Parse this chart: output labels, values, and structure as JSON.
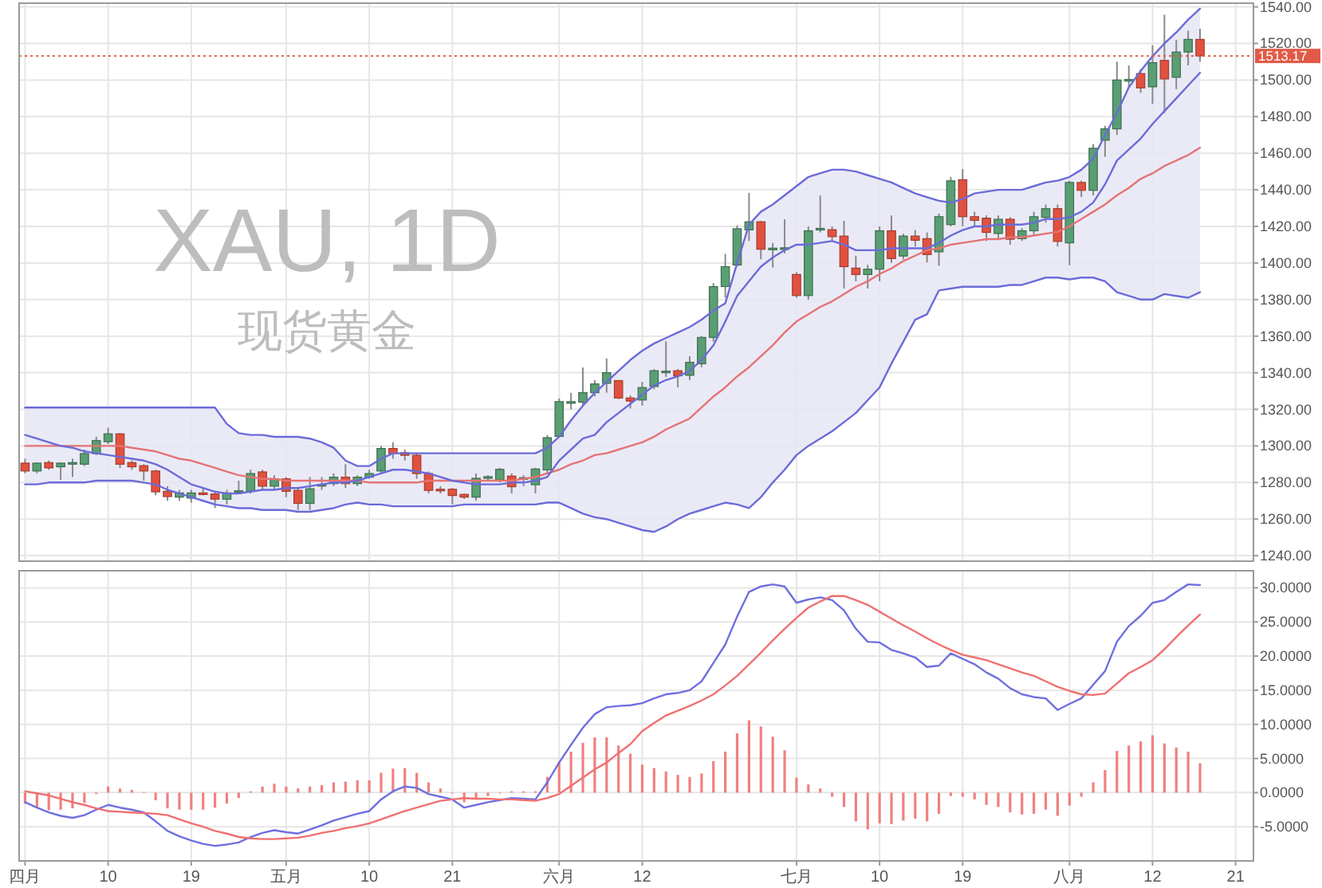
{
  "chart_data": [
    {
      "type": "candlestick",
      "title": "XAU, 1D",
      "subtitle": "现货黄金",
      "grid": true,
      "categories": [
        null,
        null,
        null,
        null,
        null,
        null,
        null,
        null,
        null,
        null,
        null,
        null,
        null,
        null,
        null,
        null,
        null,
        null,
        null,
        null,
        null,
        null,
        null,
        null,
        null,
        null,
        null,
        null,
        null,
        null,
        null,
        null,
        null,
        null,
        null,
        null,
        null,
        null,
        null,
        null,
        null,
        null,
        null,
        null,
        null,
        null,
        null,
        null,
        null,
        null,
        null,
        null,
        null,
        null,
        null,
        null,
        null,
        null,
        null,
        null,
        null,
        null,
        null,
        null,
        null,
        null,
        null,
        null,
        null,
        null,
        null,
        null,
        null,
        null,
        null,
        null,
        null,
        null,
        null,
        null,
        null,
        null,
        null,
        null,
        null,
        null,
        null,
        null,
        null,
        null,
        null,
        null,
        null,
        null,
        null,
        null,
        null,
        null,
        null,
        null,
        null,
        null,
        null,
        null
      ],
      "ylim": [
        1237,
        1542
      ],
      "yticks": [
        {
          "value": 1240,
          "label": "1240.00"
        },
        {
          "value": 1260,
          "label": "1260.00"
        },
        {
          "value": 1280,
          "label": "1280.00"
        },
        {
          "value": 1300,
          "label": "1300.00"
        },
        {
          "value": 1320,
          "label": "1320.00"
        },
        {
          "value": 1340,
          "label": "1340.00"
        },
        {
          "value": 1360,
          "label": "1360.00"
        },
        {
          "value": 1380,
          "label": "1380.00"
        },
        {
          "value": 1400,
          "label": "1400.00"
        },
        {
          "value": 1420,
          "label": "1420.00"
        },
        {
          "value": 1440,
          "label": "1440.00"
        },
        {
          "value": 1460,
          "label": "1460.00"
        },
        {
          "value": 1480,
          "label": "1480.00"
        },
        {
          "value": 1500,
          "label": "1500.00"
        },
        {
          "value": 1520,
          "label": "1520.00"
        },
        {
          "value": 1540,
          "label": "1540.00"
        }
      ],
      "ref_lines": [
        {
          "axis": "y",
          "value": 1513.17,
          "label": "1513.17",
          "color": "#e05a47",
          "line_style": "dotted"
        }
      ],
      "ohlc": [
        [
          1290.6,
          1293,
          1285,
          1286.3
        ],
        [
          1286.3,
          1291,
          1285,
          1290.6
        ],
        [
          1290.9,
          1292,
          1287,
          1288
        ],
        [
          1288.6,
          1291,
          1281.5,
          1290.6
        ],
        [
          1290.6,
          1293,
          1283,
          1290.9
        ],
        [
          1290,
          1298,
          1289,
          1295.8
        ],
        [
          1295.8,
          1305,
          1295,
          1302.9
        ],
        [
          1302.3,
          1310,
          1301,
          1306.6
        ],
        [
          1306.6,
          1307,
          1288,
          1290
        ],
        [
          1290.9,
          1292,
          1287,
          1288.6
        ],
        [
          1289.2,
          1290,
          1281,
          1286.3
        ],
        [
          1286.3,
          1287,
          1273,
          1274.9
        ],
        [
          1275.2,
          1278,
          1270,
          1272.3
        ],
        [
          1272,
          1276,
          1270,
          1274.3
        ],
        [
          1271.5,
          1276,
          1269,
          1274.3
        ],
        [
          1274.3,
          1277,
          1273,
          1274
        ],
        [
          1273.7,
          1275,
          1266,
          1270.9
        ],
        [
          1270.9,
          1276,
          1268,
          1274.3
        ],
        [
          1275.2,
          1281,
          1274,
          1275.5
        ],
        [
          1275.2,
          1287,
          1274,
          1284.9
        ],
        [
          1285.8,
          1287,
          1276,
          1278
        ],
        [
          1278,
          1284,
          1276,
          1282
        ],
        [
          1282,
          1283,
          1272,
          1275.2
        ],
        [
          1275.7,
          1277,
          1265,
          1268.6
        ],
        [
          1268.6,
          1283,
          1265,
          1276.6
        ],
        [
          1278.6,
          1283,
          1276,
          1278.9
        ],
        [
          1279.4,
          1285,
          1278,
          1282.9
        ],
        [
          1282.9,
          1290,
          1277,
          1279.4
        ],
        [
          1279.4,
          1284,
          1278,
          1282.9
        ],
        [
          1282.9,
          1287,
          1282,
          1284.9
        ],
        [
          1286.3,
          1300,
          1285,
          1298.6
        ],
        [
          1298.6,
          1302,
          1293,
          1295.8
        ],
        [
          1296.3,
          1298,
          1292,
          1294.9
        ],
        [
          1294.9,
          1296,
          1282,
          1284.9
        ],
        [
          1284.9,
          1286,
          1274,
          1275.7
        ],
        [
          1276.3,
          1278,
          1274,
          1276
        ],
        [
          1276.3,
          1277,
          1268,
          1272.9
        ],
        [
          1273.5,
          1274,
          1271,
          1272
        ],
        [
          1272,
          1285,
          1270,
          1282.3
        ],
        [
          1282.9,
          1284,
          1281,
          1283.2
        ],
        [
          1281.5,
          1288,
          1280,
          1287.2
        ],
        [
          1283.5,
          1285,
          1274,
          1277.7
        ],
        [
          1282.3,
          1284,
          1278,
          1282.6
        ],
        [
          1278.8,
          1288,
          1274,
          1287.4
        ],
        [
          1286.9,
          1306,
          1285,
          1304.5
        ],
        [
          1305.2,
          1326,
          1305,
          1324.2
        ],
        [
          1323.9,
          1329,
          1320,
          1324.2
        ],
        [
          1323.9,
          1342.9,
          1321.9,
          1329.1
        ],
        [
          1329.1,
          1336,
          1327,
          1333.9
        ],
        [
          1334.2,
          1347.8,
          1329.1,
          1340
        ],
        [
          1335.7,
          1336,
          1325.6,
          1326.2
        ],
        [
          1326.2,
          1327.6,
          1320.5,
          1324.5
        ],
        [
          1325.1,
          1335,
          1322,
          1331.9
        ],
        [
          1332.5,
          1342,
          1331,
          1341.1
        ],
        [
          1340.6,
          1357.2,
          1337.7,
          1340.9
        ],
        [
          1341.1,
          1342,
          1332,
          1338.3
        ],
        [
          1338.6,
          1349,
          1336,
          1345.7
        ],
        [
          1344.9,
          1360,
          1343,
          1359.3
        ],
        [
          1359.3,
          1389,
          1357,
          1387.1
        ],
        [
          1387.1,
          1405,
          1381,
          1398
        ],
        [
          1398.9,
          1420.5,
          1398,
          1418.7
        ],
        [
          1418.1,
          1438.3,
          1412,
          1422.5
        ],
        [
          1422.5,
          1423,
          1402,
          1407.5
        ],
        [
          1408,
          1411,
          1397.5,
          1408.1
        ],
        [
          1408.1,
          1423.9,
          1405.2,
          1408.3
        ],
        [
          1393.7,
          1395,
          1381,
          1382.2
        ],
        [
          1382.2,
          1420,
          1380,
          1417.6
        ],
        [
          1418.7,
          1436.9,
          1416.7,
          1418.9
        ],
        [
          1418.2,
          1420,
          1412,
          1414.4
        ],
        [
          1414.7,
          1423,
          1386,
          1398
        ],
        [
          1397.2,
          1404,
          1390,
          1393.7
        ],
        [
          1393.7,
          1399,
          1386,
          1396.6
        ],
        [
          1396.6,
          1420,
          1390,
          1417.6
        ],
        [
          1417.6,
          1426,
          1400,
          1402.4
        ],
        [
          1403.8,
          1416,
          1402,
          1414.7
        ],
        [
          1414.7,
          1418,
          1409,
          1412.4
        ],
        [
          1413.3,
          1416.7,
          1400.3,
          1404.6
        ],
        [
          1406.1,
          1427,
          1398.5,
          1425.3
        ],
        [
          1421,
          1447,
          1420,
          1444.9
        ],
        [
          1445.5,
          1451.3,
          1420,
          1425.3
        ],
        [
          1425.3,
          1428,
          1420,
          1423.3
        ],
        [
          1424.5,
          1426,
          1412,
          1416.7
        ],
        [
          1416.1,
          1426,
          1413,
          1423.9
        ],
        [
          1423.9,
          1425,
          1410,
          1413
        ],
        [
          1413.3,
          1419,
          1412,
          1417.6
        ],
        [
          1417.6,
          1428,
          1415,
          1425.3
        ],
        [
          1424.9,
          1432,
          1422,
          1429.7
        ],
        [
          1429.7,
          1432,
          1409,
          1411.8
        ],
        [
          1411,
          1445,
          1398.7,
          1444
        ],
        [
          1444,
          1445,
          1436,
          1439.7
        ],
        [
          1439.7,
          1465,
          1437,
          1462.7
        ],
        [
          1467.1,
          1475,
          1458,
          1473.3
        ],
        [
          1473.3,
          1510,
          1470,
          1500
        ],
        [
          1500,
          1508,
          1496,
          1500.3
        ],
        [
          1503.5,
          1506,
          1493,
          1495.7
        ],
        [
          1496.3,
          1519,
          1487,
          1509.5
        ],
        [
          1510.7,
          1535.7,
          1482,
          1500.6
        ],
        [
          1501.5,
          1522,
          1495,
          1515.3
        ],
        [
          1515.3,
          1527,
          1508,
          1522.2
        ],
        [
          1522.2,
          1528,
          1510,
          1513.2
        ],
        null,
        null,
        null,
        null
      ],
      "series": [
        {
          "type": "line",
          "color": "#6b6bd9",
          "values": [
            1321,
            1321,
            1321,
            1321,
            1321,
            1321,
            1321,
            1321,
            1321,
            1321,
            1321,
            1321,
            1321,
            1321,
            1321,
            1321,
            1321,
            1312,
            1307,
            1306,
            1306,
            1305,
            1305,
            1305,
            1304,
            1302,
            1299,
            1292,
            1289,
            1289,
            1293,
            1296,
            1296,
            1296,
            1296,
            1296,
            1296,
            1296,
            1296,
            1296,
            1296,
            1296,
            1296,
            1296,
            1299,
            1305,
            1314,
            1322,
            1329,
            1335,
            1341,
            1347,
            1352,
            1356,
            1359,
            1362,
            1365,
            1369,
            1374,
            1378,
            1400,
            1421,
            1428,
            1432,
            1437,
            1442,
            1447,
            1449,
            1451,
            1451,
            1450,
            1448,
            1446,
            1444,
            1441,
            1438,
            1436,
            1434,
            1433,
            1435,
            1438,
            1439,
            1440,
            1440,
            1440,
            1442,
            1444,
            1445,
            1447,
            1451,
            1457,
            1470,
            1482,
            1496,
            1505,
            1513,
            1520,
            1526,
            1533,
            1539,
            null,
            null,
            null,
            null
          ]
        },
        {
          "type": "line",
          "color": "#6b6bd9",
          "values": [
            1279,
            1279,
            1280,
            1280,
            1280,
            1280,
            1281,
            1281,
            1281,
            1281,
            1280,
            1279,
            1276,
            1274,
            1272,
            1270,
            1268,
            1267,
            1266,
            1266,
            1265,
            1265,
            1265,
            1264,
            1264,
            1265,
            1266,
            1268,
            1269,
            1268,
            1268,
            1267,
            1267,
            1267,
            1267,
            1267,
            1267,
            1268,
            1268,
            1268,
            1268,
            1268,
            1268,
            1268,
            1269,
            1269,
            1266,
            1263,
            1261,
            1260,
            1258,
            1256,
            1254,
            1253,
            1256,
            1260,
            1263,
            1265,
            1267,
            1269,
            1268,
            1266,
            1272,
            1280,
            1287,
            1295,
            1300,
            1304,
            1308,
            1313,
            1318,
            1325,
            1332,
            1345,
            1357,
            1369,
            1372,
            1385,
            1386,
            1387,
            1387,
            1387,
            1387,
            1388,
            1388,
            1390,
            1392,
            1392,
            1391,
            1392,
            1392,
            1390,
            1384,
            1382,
            1380,
            1380,
            1383,
            1382,
            1381,
            1384,
            null,
            null,
            null,
            null
          ]
        },
        {
          "type": "line",
          "color": "#e57373",
          "lower": [
            1279,
            1279,
            1280,
            1280,
            1280,
            1280,
            1281,
            1281,
            1281,
            1281,
            1280,
            1279,
            1276,
            1274,
            1272,
            1270,
            1268,
            1267,
            1266,
            1266,
            1265,
            1265,
            1265,
            1264,
            1264,
            1265,
            1266,
            1268,
            1269,
            1268,
            1268,
            1267,
            1267,
            1267,
            1267,
            1267,
            1267,
            1268,
            1268,
            1268,
            1268,
            1268,
            1268,
            1268,
            1269,
            1269,
            1266,
            1263,
            1261,
            1260,
            1258,
            1256,
            1254,
            1253,
            1256,
            1260,
            1263,
            1265,
            1267,
            1269,
            1268,
            1266,
            1272,
            1280,
            1287,
            1295,
            1300,
            1304,
            1308,
            1313,
            1318,
            1325,
            1332,
            1345,
            1357,
            1369,
            1372,
            1385,
            1386,
            1387,
            1387,
            1387,
            1387,
            1388,
            1388,
            1390,
            1392,
            1392,
            1391,
            1392,
            1392,
            1390,
            1384,
            1382,
            1380,
            1380,
            1383,
            1382,
            1381,
            1384,
            null,
            null,
            null,
            null
          ],
          "upper": [
            1321,
            1321,
            1321,
            1321,
            1321,
            1321,
            1321,
            1321,
            1321,
            1321,
            1321,
            1321,
            1321,
            1321,
            1321,
            1321,
            1321,
            1312,
            1307,
            1306,
            1306,
            1305,
            1305,
            1305,
            1304,
            1302,
            1299,
            1292,
            1289,
            1289,
            1293,
            1296,
            1296,
            1296,
            1296,
            1296,
            1296,
            1296,
            1296,
            1296,
            1296,
            1296,
            1296,
            1296,
            1299,
            1305,
            1314,
            1322,
            1329,
            1335,
            1341,
            1347,
            1352,
            1356,
            1359,
            1362,
            1365,
            1369,
            1374,
            1378,
            1400,
            1421,
            1428,
            1432,
            1437,
            1442,
            1447,
            1449,
            1451,
            1451,
            1450,
            1448,
            1446,
            1444,
            1441,
            1438,
            1436,
            1434,
            1433,
            1435,
            1438,
            1439,
            1440,
            1440,
            1440,
            1442,
            1444,
            1445,
            1447,
            1451,
            1457,
            1470,
            1482,
            1496,
            1505,
            1513,
            1520,
            1526,
            1533,
            1539,
            null,
            null,
            null,
            null
          ],
          "values": [
            1300,
            1300,
            1300,
            1300,
            1300,
            1300,
            1300,
            1300,
            1300,
            1299,
            1298,
            1297,
            1295,
            1293,
            1292,
            1290,
            1288,
            1286,
            1284,
            1283,
            1282,
            1282,
            1281,
            1281,
            1281,
            1281,
            1281,
            1281,
            1281,
            1280,
            1280,
            1280,
            1280,
            1280,
            1281,
            1281,
            1281,
            1281,
            1281,
            1281,
            1281,
            1281,
            1282,
            1283,
            1285,
            1287,
            1290,
            1292,
            1295,
            1296,
            1298,
            1300,
            1302,
            1305,
            1309,
            1312,
            1315,
            1321,
            1327,
            1332,
            1338,
            1343,
            1349,
            1355,
            1362,
            1368,
            1372,
            1376,
            1379,
            1383,
            1387,
            1390,
            1394,
            1397,
            1401,
            1404,
            1407,
            1408,
            1410,
            1411,
            1412,
            1413,
            1413,
            1414,
            1414,
            1415,
            1416,
            1417,
            1420,
            1424,
            1428,
            1432,
            1437,
            1441,
            1446,
            1449,
            1453,
            1456,
            1459,
            1463,
            null,
            null,
            null,
            null
          ]
        },
        {
          "type": "line",
          "color": "#6b6bd9",
          "values": [
            1306,
            1304,
            1302,
            1300,
            1299,
            1297,
            1296,
            1295,
            1294,
            1293,
            1292,
            1290,
            1287,
            1283,
            1279,
            1277,
            1275,
            1274,
            1274,
            1275,
            1276,
            1276,
            1277,
            1277,
            1278,
            1279,
            1280,
            1280,
            1281,
            1283,
            1285,
            1287,
            1287,
            1286,
            1285,
            1283,
            1281,
            1280,
            1279,
            1279,
            1279,
            1280,
            1280,
            1281,
            1283,
            1292,
            1298,
            1304,
            1306,
            1313,
            1318,
            1323,
            1328,
            1333,
            1336,
            1338,
            1341,
            1347,
            1355,
            1368,
            1382,
            1390,
            1398,
            1403,
            1407,
            1410,
            1410,
            1411,
            1412,
            1410,
            1407,
            1407,
            1407,
            1408,
            1408,
            1408,
            1408,
            1411,
            1415,
            1418,
            1420,
            1420,
            1421,
            1421,
            1421,
            1422,
            1424,
            1424,
            1425,
            1428,
            1433,
            1443,
            1456,
            1462,
            1468,
            1476,
            1483,
            1490,
            1497,
            1504,
            null,
            null,
            null,
            null
          ]
        }
      ]
    },
    {
      "type": "bar",
      "grid": true,
      "categories": [
        "四月",
        null,
        null,
        null,
        null,
        null,
        null,
        "10",
        null,
        null,
        null,
        null,
        null,
        null,
        "19",
        null,
        null,
        null,
        null,
        null,
        null,
        null,
        "五月",
        null,
        null,
        null,
        null,
        null,
        null,
        "10",
        null,
        null,
        null,
        null,
        null,
        null,
        "21",
        null,
        null,
        null,
        null,
        null,
        null,
        null,
        null,
        "六月",
        null,
        null,
        null,
        null,
        null,
        null,
        "12",
        null,
        null,
        null,
        null,
        null,
        null,
        null,
        null,
        null,
        null,
        null,
        null,
        "七月",
        null,
        null,
        null,
        null,
        null,
        null,
        "10",
        null,
        null,
        null,
        null,
        null,
        null,
        "19",
        null,
        null,
        null,
        null,
        null,
        null,
        null,
        null,
        "八月",
        null,
        null,
        null,
        null,
        null,
        null,
        "12",
        null,
        null,
        null,
        null,
        null,
        null,
        "21",
        null
      ],
      "ylim": [
        -10,
        32.5
      ],
      "yticks": [
        {
          "value": -5,
          "label": "-5.0000"
        },
        {
          "value": 0,
          "label": "0.0000"
        },
        {
          "value": 5,
          "label": "5.0000"
        },
        {
          "value": 10,
          "label": "10.0000"
        },
        {
          "value": 15,
          "label": "15.0000"
        },
        {
          "value": 20,
          "label": "20.0000"
        },
        {
          "value": 25,
          "label": "25.0000"
        },
        {
          "value": 30,
          "label": "30.0000"
        }
      ],
      "series": [
        {
          "type": "bar",
          "color": "#f08080",
          "values": [
            -1.6,
            -2.3,
            -2.6,
            -2.5,
            -2.3,
            -1.5,
            -0.2,
            0.9,
            0.6,
            0.4,
            0.1,
            -1.1,
            -2.3,
            -2.5,
            -2.5,
            -2.5,
            -2.2,
            -1.6,
            -0.8,
            0.2,
            0.9,
            1.3,
            0.9,
            0.6,
            0.9,
            1.1,
            1.5,
            1.6,
            1.8,
            1.8,
            2.9,
            3.5,
            3.6,
            2.9,
            1.5,
            0.6,
            0,
            -1.4,
            -0.9,
            -0.5,
            -0.1,
            0.2,
            0.2,
            0.2,
            2.3,
            4.6,
            6,
            7.3,
            8.1,
            8.1,
            6.9,
            5.7,
            4.1,
            3.6,
            3.1,
            2.6,
            2.3,
            2.8,
            4.6,
            6,
            8.7,
            10.6,
            9.7,
            8.2,
            6.2,
            2.2,
            1.2,
            0.6,
            -0.6,
            -2.1,
            -4.2,
            -5.4,
            -4.5,
            -4.6,
            -4.1,
            -3.8,
            -4.2,
            -3.1,
            -0.5,
            -0.6,
            -1,
            -1.8,
            -2.1,
            -2.9,
            -3.2,
            -3.1,
            -2.5,
            -3.4,
            -1.9,
            -0.6,
            1.5,
            3.3,
            6.1,
            6.9,
            7.5,
            8.4,
            7.2,
            6.6,
            6,
            4.3,
            null,
            null,
            null,
            null
          ]
        },
        {
          "type": "line",
          "color": "#6f6fe0",
          "values": [
            -1.4,
            -2.2,
            -2.9,
            -3.4,
            -3.7,
            -3.3,
            -2.5,
            -1.8,
            -2.2,
            -2.5,
            -2.9,
            -4.2,
            -5.6,
            -6.4,
            -7,
            -7.5,
            -7.8,
            -7.6,
            -7.3,
            -6.5,
            -5.9,
            -5.5,
            -5.8,
            -6,
            -5.4,
            -4.8,
            -4.1,
            -3.6,
            -3.1,
            -2.7,
            -1,
            0.2,
            0.9,
            0.7,
            -0.2,
            -0.6,
            -1,
            -2.2,
            -1.8,
            -1.4,
            -1.1,
            -0.8,
            -0.9,
            -1,
            1.5,
            4.4,
            7,
            9.5,
            11.5,
            12.5,
            12.7,
            12.8,
            13.1,
            13.8,
            14.4,
            14.6,
            15,
            16.3,
            19,
            21.7,
            25.8,
            29.4,
            30.2,
            30.5,
            30.2,
            27.8,
            28.3,
            28.6,
            28.2,
            26.7,
            24,
            22.1,
            22,
            20.9,
            20.4,
            19.8,
            18.4,
            18.6,
            20.4,
            19.6,
            18.8,
            17.6,
            16.7,
            15.3,
            14.4,
            14,
            13.8,
            12.1,
            13,
            13.8,
            15.8,
            17.8,
            22.1,
            24.4,
            25.9,
            27.8,
            28.2,
            29.4,
            30.5,
            30.4,
            null,
            null,
            null,
            null
          ]
        },
        {
          "type": "line",
          "color": "#f07070",
          "values": [
            0.2,
            -0.1,
            -0.4,
            -0.9,
            -1.4,
            -1.8,
            -2.3,
            -2.7,
            -2.8,
            -2.9,
            -3,
            -3.1,
            -3.3,
            -3.9,
            -4.5,
            -5,
            -5.6,
            -6,
            -6.5,
            -6.7,
            -6.8,
            -6.8,
            -6.7,
            -6.6,
            -6.3,
            -5.9,
            -5.6,
            -5.2,
            -4.9,
            -4.5,
            -3.9,
            -3.3,
            -2.7,
            -2.2,
            -1.7,
            -1.2,
            -1,
            -0.8,
            -0.9,
            -0.9,
            -1,
            -1,
            -1.1,
            -1.2,
            -0.8,
            -0.2,
            1,
            2.2,
            3.4,
            4.4,
            5.8,
            7.1,
            9,
            10.2,
            11.3,
            12,
            12.7,
            13.5,
            14.4,
            15.7,
            17.1,
            18.8,
            20.5,
            22.3,
            24,
            25.6,
            27.1,
            28,
            28.8,
            28.8,
            28.2,
            27.5,
            26.5,
            25.5,
            24.5,
            23.6,
            22.6,
            21.7,
            20.9,
            20.2,
            19.8,
            19.4,
            18.8,
            18.2,
            17.6,
            17.1,
            16.3,
            15.5,
            14.9,
            14.4,
            14.3,
            14.5,
            16,
            17.5,
            18.4,
            19.4,
            21,
            22.8,
            24.5,
            26.1,
            null,
            null,
            null,
            null
          ]
        }
      ]
    }
  ]
}
